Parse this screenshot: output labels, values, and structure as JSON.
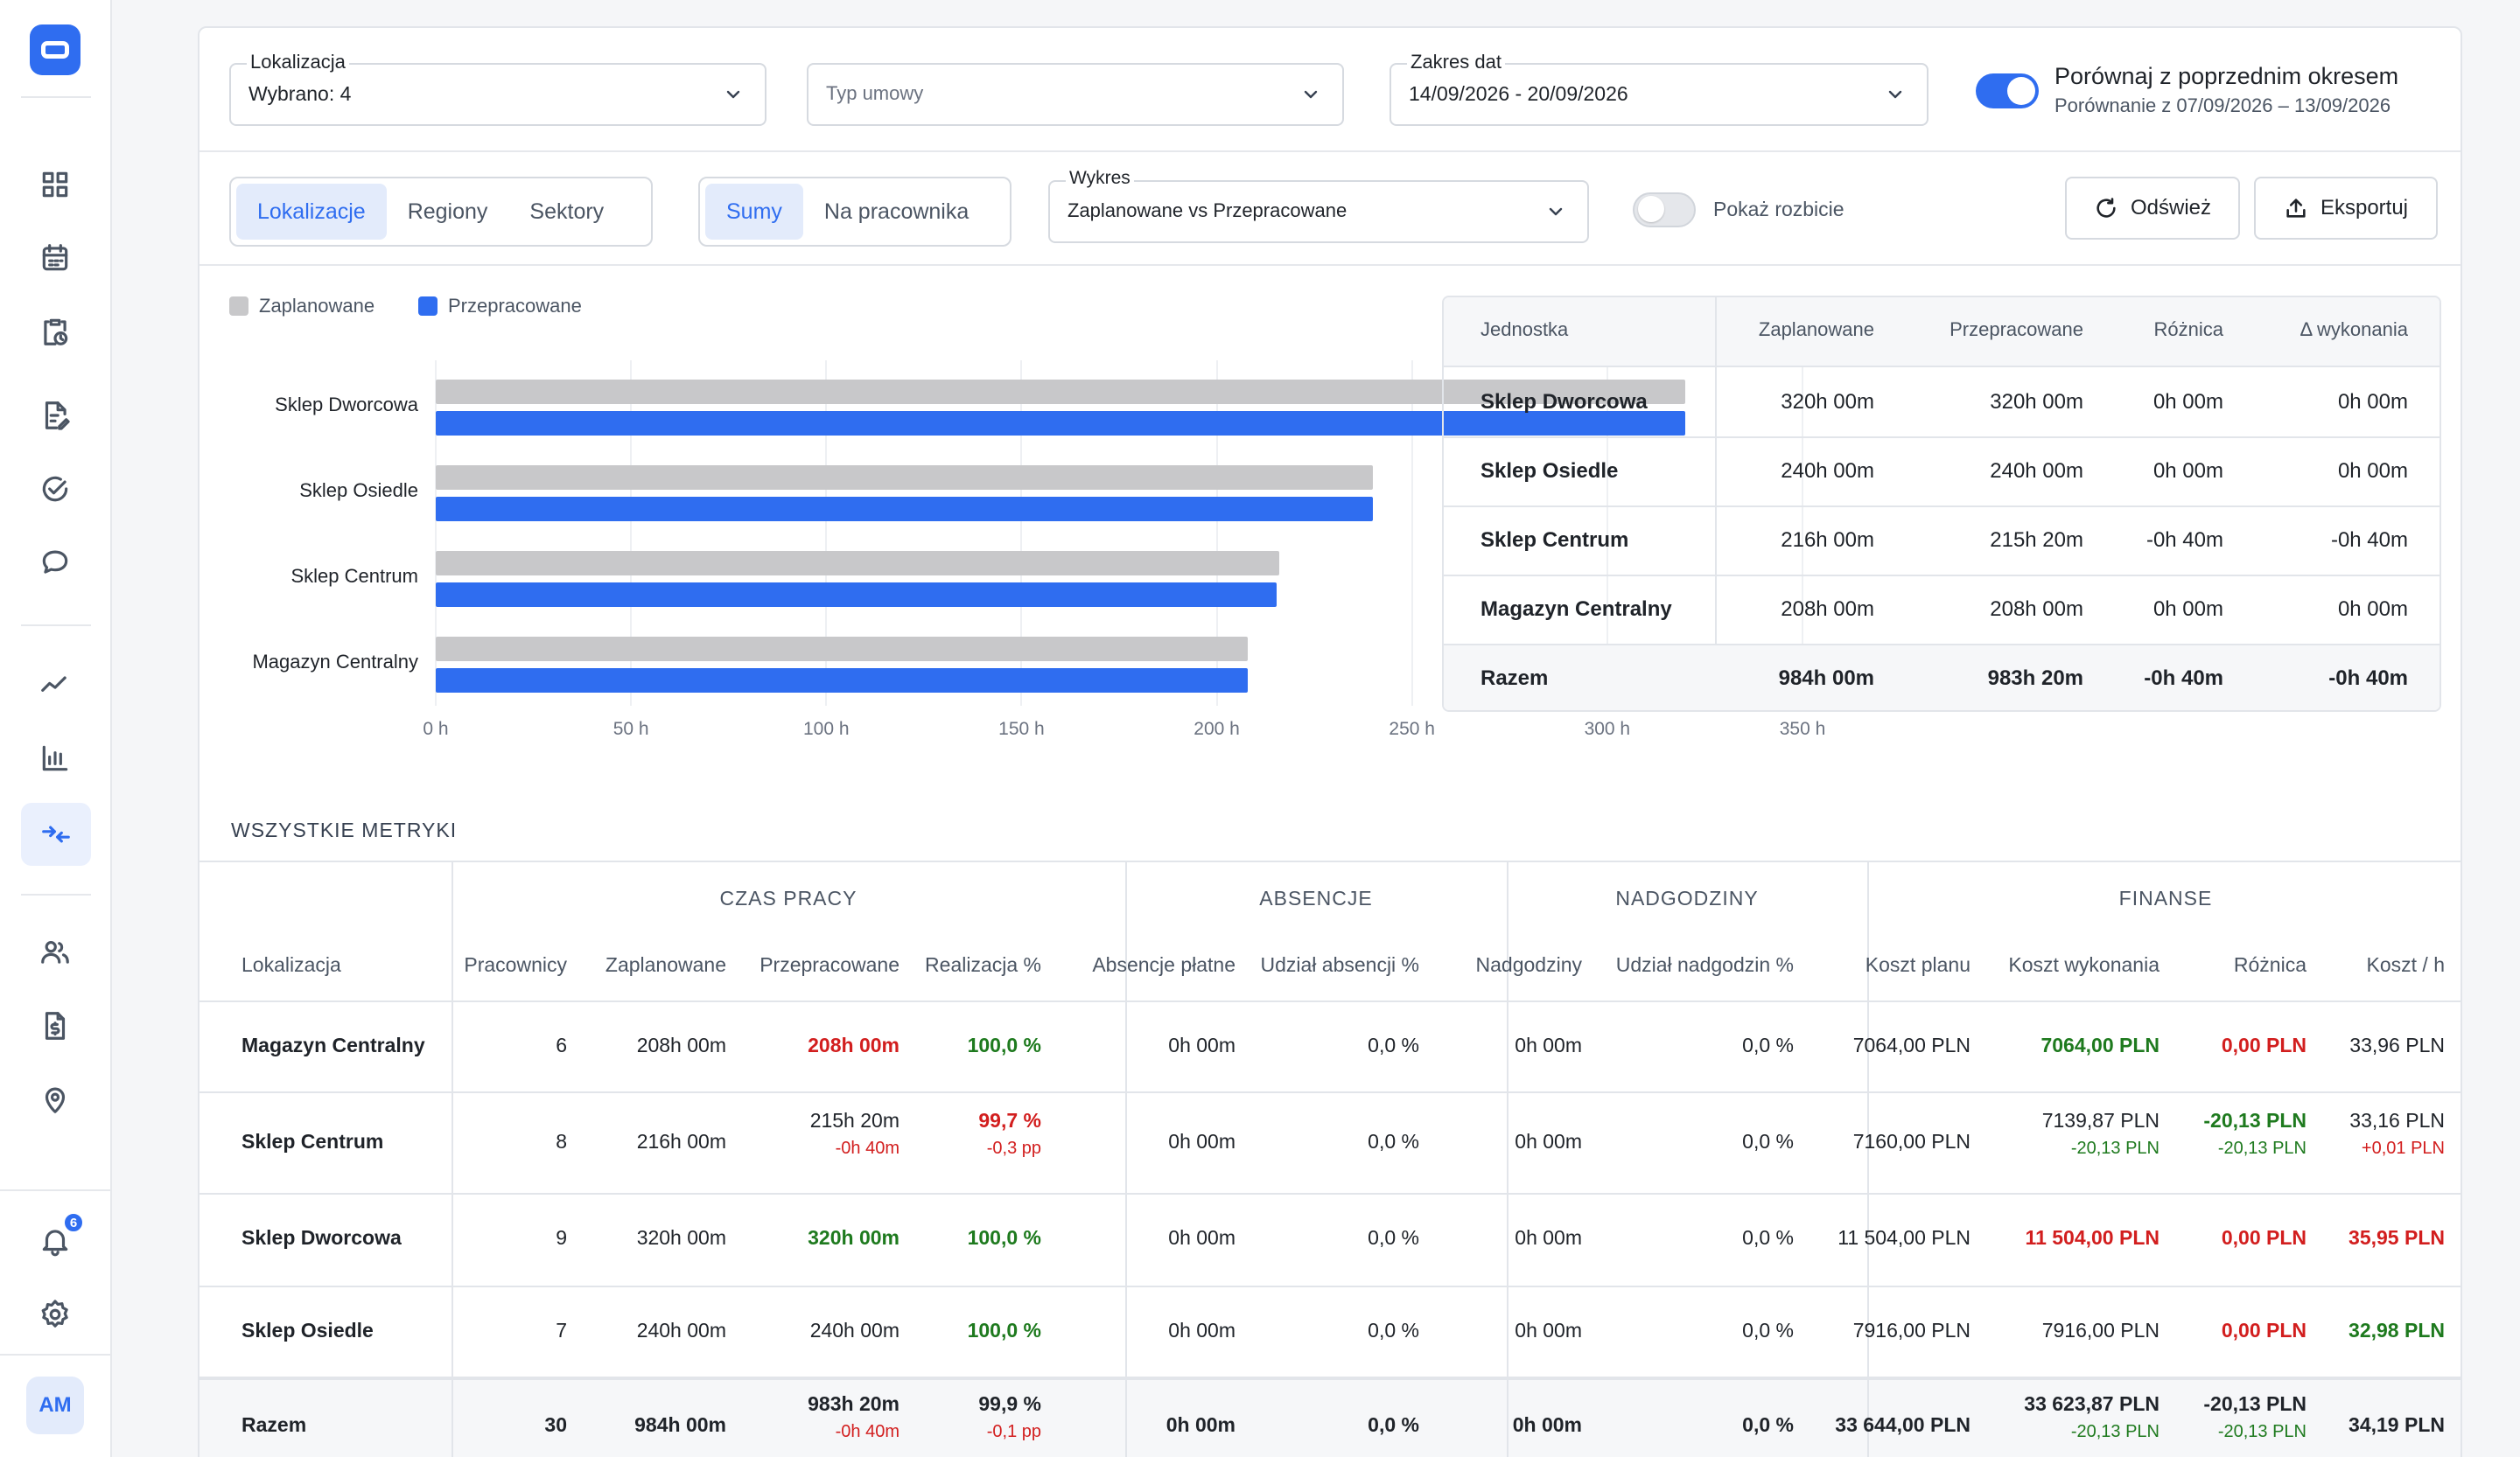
{
  "sidebar": {
    "avatar": "AM",
    "badge": "6",
    "icons": [
      "apps-grid-icon",
      "calendar-icon",
      "clipboard-clock-icon",
      "document-edit-icon",
      "check-circle-icon",
      "chat-bubble-icon",
      "trend-line-icon",
      "bar-chart-icon",
      "compare-arrows-icon",
      "users-icon",
      "file-money-icon",
      "location-pin-icon",
      "bell-icon",
      "gear-icon"
    ]
  },
  "filters": {
    "location": {
      "label": "Lokalizacja",
      "value": "Wybrano: 4"
    },
    "contract": {
      "placeholder": "Typ umowy"
    },
    "dates": {
      "label": "Zakres dat",
      "value": "14/09/2026 - 20/09/2026"
    },
    "compare": {
      "title": "Porównaj z poprzednim okresem",
      "subtitle": "Porównanie z 07/09/2026 – 13/09/2026",
      "on": true
    }
  },
  "controls": {
    "group_tabs": [
      "Lokalizacje",
      "Regiony",
      "Sektory"
    ],
    "group_active": "Lokalizacje",
    "mode_tabs": [
      "Sumy",
      "Na pracownika"
    ],
    "mode_active": "Sumy",
    "chart_select": {
      "label": "Wykres",
      "value": "Zaplanowane vs Przepracowane"
    },
    "breakdown_label": "Pokaż rozbicie",
    "breakdown_on": false,
    "refresh_label": "Odśwież",
    "export_label": "Eksportuj"
  },
  "chart_data": {
    "type": "bar",
    "orientation": "horizontal",
    "categories": [
      "Sklep Dworcowa",
      "Sklep Osiedle",
      "Sklep Centrum",
      "Magazyn Centralny"
    ],
    "series": [
      {
        "name": "Zaplanowane",
        "color": "#c8c8ca",
        "values": [
          320,
          240,
          216,
          208
        ]
      },
      {
        "name": "Przepracowane",
        "color": "#2f6df0",
        "values": [
          320,
          240,
          215.33,
          208
        ]
      }
    ],
    "xlim": [
      0,
      350
    ],
    "ticks": [
      "0 h",
      "50 h",
      "100 h",
      "150 h",
      "200 h",
      "250 h",
      "300 h",
      "350 h"
    ],
    "grid": true,
    "legend": "top-left"
  },
  "summary_table": {
    "headers": [
      "Jednostka",
      "Zaplanowane",
      "Przepracowane",
      "Różnica",
      "Δ wykonania"
    ],
    "rows": [
      [
        "Sklep Dworcowa",
        "320h 00m",
        "320h 00m",
        "0h 00m",
        "0h 00m"
      ],
      [
        "Sklep Osiedle",
        "240h 00m",
        "240h 00m",
        "0h 00m",
        "0h 00m"
      ],
      [
        "Sklep Centrum",
        "216h 00m",
        "215h 20m",
        "-0h 40m",
        "-0h 40m"
      ],
      [
        "Magazyn Centralny",
        "208h 00m",
        "208h 00m",
        "0h 00m",
        "0h 00m"
      ]
    ],
    "total": [
      "Razem",
      "984h 00m",
      "983h 20m",
      "-0h 40m",
      "-0h 40m"
    ]
  },
  "metrics": {
    "title": "WSZYSTKIE METRYKI",
    "groups": [
      "CZAS PRACY",
      "ABSENCJE",
      "NADGODZINY",
      "FINANSE"
    ],
    "headers": [
      "Lokalizacja",
      "Pracownicy",
      "Zaplanowane",
      "Przepracowane",
      "Realizacja %",
      "Absencje płatne",
      "Udział absencji %",
      "Nadgodziny",
      "Udział nadgodzin %",
      "Koszt planu",
      "Koszt wykonania",
      "Różnica",
      "Koszt / h"
    ],
    "rows": [
      {
        "name": "Magazyn Centralny",
        "workers": "6",
        "planned": "208h 00m",
        "worked": "208h 00m",
        "worked_sub": "",
        "real": "100,0 %",
        "real_sub": "",
        "abs": "0h 00m",
        "abs_pct": "0,0 %",
        "ot": "0h 00m",
        "ot_pct": "0,0 %",
        "cost_plan": "7064,00 PLN",
        "cost_done": "7064,00 PLN",
        "cost_done_sub": "",
        "diff": "0,00 PLN",
        "diff_sub": "",
        "per_h": "33,96 PLN",
        "per_h_sub": ""
      },
      {
        "name": "Sklep Centrum",
        "workers": "8",
        "planned": "216h 00m",
        "worked": "215h 20m",
        "worked_sub": "-0h 40m",
        "real": "99,7 %",
        "real_sub": "-0,3 pp",
        "abs": "0h 00m",
        "abs_pct": "0,0 %",
        "ot": "0h 00m",
        "ot_pct": "0,0 %",
        "cost_plan": "7160,00 PLN",
        "cost_done": "7139,87 PLN",
        "cost_done_sub": "-20,13 PLN",
        "diff": "-20,13 PLN",
        "diff_sub": "-20,13 PLN",
        "per_h": "33,16 PLN",
        "per_h_sub": "+0,01 PLN"
      },
      {
        "name": "Sklep Dworcowa",
        "workers": "9",
        "planned": "320h 00m",
        "worked": "320h 00m",
        "worked_sub": "",
        "real": "100,0 %",
        "real_sub": "",
        "abs": "0h 00m",
        "abs_pct": "0,0 %",
        "ot": "0h 00m",
        "ot_pct": "0,0 %",
        "cost_plan": "11 504,00 PLN",
        "cost_done": "11 504,00 PLN",
        "cost_done_sub": "",
        "diff": "0,00 PLN",
        "diff_sub": "",
        "per_h": "35,95 PLN",
        "per_h_sub": ""
      },
      {
        "name": "Sklep Osiedle",
        "workers": "7",
        "planned": "240h 00m",
        "worked": "240h 00m",
        "worked_sub": "",
        "real": "100,0 %",
        "real_sub": "",
        "abs": "0h 00m",
        "abs_pct": "0,0 %",
        "ot": "0h 00m",
        "ot_pct": "0,0 %",
        "cost_plan": "7916,00 PLN",
        "cost_done": "7916,00 PLN",
        "cost_done_sub": "",
        "diff": "0,00 PLN",
        "diff_sub": "",
        "per_h": "32,98 PLN",
        "per_h_sub": ""
      }
    ],
    "total": {
      "name": "Razem",
      "workers": "30",
      "planned": "984h 00m",
      "worked": "983h 20m",
      "worked_sub": "-0h 40m",
      "real": "99,9 %",
      "real_sub": "-0,1 pp",
      "abs": "0h 00m",
      "abs_pct": "0,0 %",
      "ot": "0h 00m",
      "ot_pct": "0,0 %",
      "cost_plan": "33 644,00 PLN",
      "cost_done": "33 623,87 PLN",
      "cost_done_sub": "-20,13 PLN",
      "diff": "-20,13 PLN",
      "diff_sub": "-20,13 PLN",
      "per_h": "34,19 PLN"
    }
  }
}
